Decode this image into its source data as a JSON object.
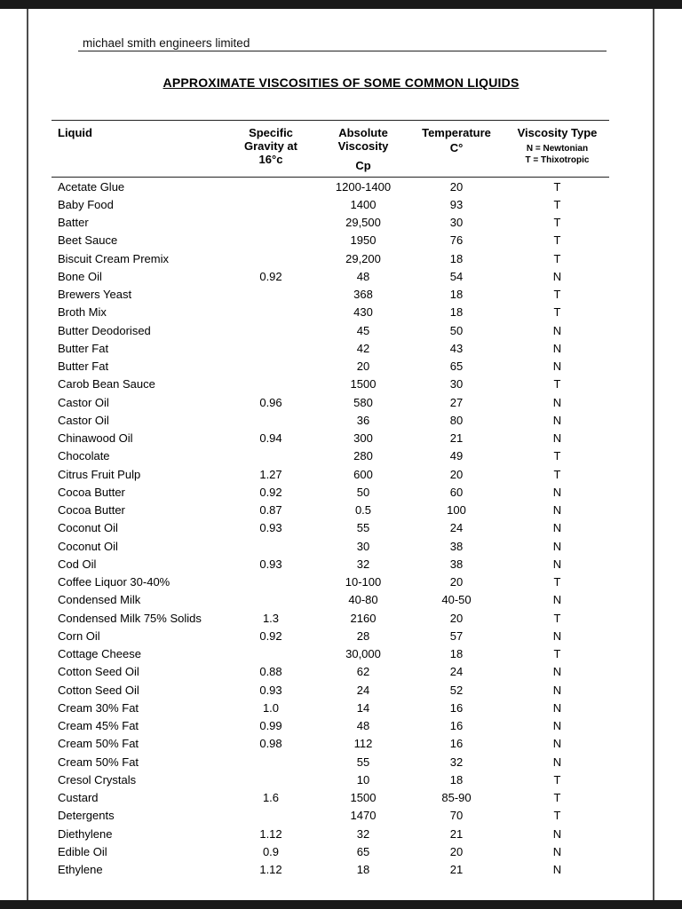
{
  "header": {
    "company": "michael smith engineers limited",
    "title": "APPROXIMATE VISCOSITIES OF SOME COMMON LIQUIDS"
  },
  "table": {
    "headers": {
      "liquid": "Liquid",
      "gravity": "Specific Gravity at 16°c",
      "viscosity": "Absolute Viscosity",
      "viscosity_unit": "Cp",
      "temperature": "Temperature",
      "temperature_unit": "C°",
      "type": "Viscosity Type",
      "type_note_n": "N = Newtonian",
      "type_note_t": "T = Thixotropic"
    },
    "rows": [
      {
        "liquid": "Acetate Glue",
        "gravity": "",
        "viscosity": "1200-1400",
        "temp": "20",
        "type": "T"
      },
      {
        "liquid": "Baby Food",
        "gravity": "",
        "viscosity": "1400",
        "temp": "93",
        "type": "T"
      },
      {
        "liquid": "Batter",
        "gravity": "",
        "viscosity": "29,500",
        "temp": "30",
        "type": "T"
      },
      {
        "liquid": "Beet Sauce",
        "gravity": "",
        "viscosity": "1950",
        "temp": "76",
        "type": "T"
      },
      {
        "liquid": "Biscuit Cream Premix",
        "gravity": "",
        "viscosity": "29,200",
        "temp": "18",
        "type": "T"
      },
      {
        "liquid": "Bone Oil",
        "gravity": "0.92",
        "viscosity": "48",
        "temp": "54",
        "type": "N"
      },
      {
        "liquid": "Brewers Yeast",
        "gravity": "",
        "viscosity": "368",
        "temp": "18",
        "type": "T"
      },
      {
        "liquid": "Broth Mix",
        "gravity": "",
        "viscosity": "430",
        "temp": "18",
        "type": "T"
      },
      {
        "liquid": "Butter Deodorised",
        "gravity": "",
        "viscosity": "45",
        "temp": "50",
        "type": "N"
      },
      {
        "liquid": "Butter Fat",
        "gravity": "",
        "viscosity": "42",
        "temp": "43",
        "type": "N"
      },
      {
        "liquid": "Butter Fat",
        "gravity": "",
        "viscosity": "20",
        "temp": "65",
        "type": "N"
      },
      {
        "liquid": "Carob Bean Sauce",
        "gravity": "",
        "viscosity": "1500",
        "temp": "30",
        "type": "T"
      },
      {
        "liquid": "Castor Oil",
        "gravity": "0.96",
        "viscosity": "580",
        "temp": "27",
        "type": "N"
      },
      {
        "liquid": "Castor Oil",
        "gravity": "",
        "viscosity": "36",
        "temp": "80",
        "type": "N"
      },
      {
        "liquid": "Chinawood Oil",
        "gravity": "0.94",
        "viscosity": "300",
        "temp": "21",
        "type": "N"
      },
      {
        "liquid": "Chocolate",
        "gravity": "",
        "viscosity": "280",
        "temp": "49",
        "type": "T"
      },
      {
        "liquid": "Citrus Fruit Pulp",
        "gravity": "1.27",
        "viscosity": "600",
        "temp": "20",
        "type": "T"
      },
      {
        "liquid": "Cocoa Butter",
        "gravity": "0.92",
        "viscosity": "50",
        "temp": "60",
        "type": "N"
      },
      {
        "liquid": "Cocoa Butter",
        "gravity": "0.87",
        "viscosity": "0.5",
        "temp": "100",
        "type": "N"
      },
      {
        "liquid": "Coconut Oil",
        "gravity": "0.93",
        "viscosity": "55",
        "temp": "24",
        "type": "N"
      },
      {
        "liquid": "Coconut Oil",
        "gravity": "",
        "viscosity": "30",
        "temp": "38",
        "type": "N"
      },
      {
        "liquid": "Cod Oil",
        "gravity": "0.93",
        "viscosity": "32",
        "temp": "38",
        "type": "N"
      },
      {
        "liquid": "Coffee Liquor 30-40%",
        "gravity": "",
        "viscosity": "10-100",
        "temp": "20",
        "type": "T"
      },
      {
        "liquid": "Condensed Milk",
        "gravity": "",
        "viscosity": "40-80",
        "temp": "40-50",
        "type": "N"
      },
      {
        "liquid": "Condensed Milk 75% Solids",
        "gravity": "1.3",
        "viscosity": "2160",
        "temp": "20",
        "type": "T"
      },
      {
        "liquid": "Corn Oil",
        "gravity": "0.92",
        "viscosity": "28",
        "temp": "57",
        "type": "N"
      },
      {
        "liquid": "Cottage Cheese",
        "gravity": "",
        "viscosity": "30,000",
        "temp": "18",
        "type": "T"
      },
      {
        "liquid": "Cotton Seed Oil",
        "gravity": "0.88",
        "viscosity": "62",
        "temp": "24",
        "type": "N"
      },
      {
        "liquid": "Cotton Seed Oil",
        "gravity": "0.93",
        "viscosity": "24",
        "temp": "52",
        "type": "N"
      },
      {
        "liquid": "Cream 30% Fat",
        "gravity": "1.0",
        "viscosity": "14",
        "temp": "16",
        "type": "N"
      },
      {
        "liquid": "Cream 45% Fat",
        "gravity": "0.99",
        "viscosity": "48",
        "temp": "16",
        "type": "N"
      },
      {
        "liquid": "Cream 50% Fat",
        "gravity": "0.98",
        "viscosity": "112",
        "temp": "16",
        "type": "N"
      },
      {
        "liquid": "Cream 50% Fat",
        "gravity": "",
        "viscosity": "55",
        "temp": "32",
        "type": "N"
      },
      {
        "liquid": "Cresol Crystals",
        "gravity": "",
        "viscosity": "10",
        "temp": "18",
        "type": "T"
      },
      {
        "liquid": "Custard",
        "gravity": "1.6",
        "viscosity": "1500",
        "temp": "85-90",
        "type": "T"
      },
      {
        "liquid": "Detergents",
        "gravity": "",
        "viscosity": "1470",
        "temp": "70",
        "type": "T"
      },
      {
        "liquid": "Diethylene",
        "gravity": "1.12",
        "viscosity": "32",
        "temp": "21",
        "type": "N"
      },
      {
        "liquid": "Edible Oil",
        "gravity": "0.9",
        "viscosity": "65",
        "temp": "20",
        "type": "N"
      },
      {
        "liquid": "Ethylene",
        "gravity": "1.12",
        "viscosity": "18",
        "temp": "21",
        "type": "N"
      }
    ]
  }
}
